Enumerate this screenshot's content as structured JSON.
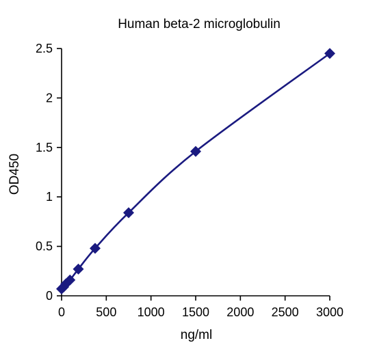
{
  "chart_data": {
    "type": "scatter",
    "title": "Human beta-2 microglobulin",
    "xlabel": "ng/ml",
    "ylabel": "OD450",
    "xlim": [
      0,
      3000
    ],
    "ylim": [
      0,
      2.5
    ],
    "x_ticks": [
      0,
      500,
      1000,
      1500,
      2000,
      2500,
      3000
    ],
    "y_ticks": [
      0,
      0.5,
      1,
      1.5,
      2,
      2.5
    ],
    "x_tick_labels": [
      "0",
      "500",
      "1000",
      "1500",
      "2000",
      "2500",
      "3000"
    ],
    "y_tick_labels": [
      "0",
      "0.5",
      "1",
      "1.5",
      "2",
      "2.5"
    ],
    "grid": false,
    "legend": "none",
    "color": "#1a1a80",
    "series": [
      {
        "marker": "diamond",
        "fit_line": true,
        "x": [
          0,
          23.4,
          46.9,
          93.75,
          187.5,
          375,
          750,
          1500,
          3000
        ],
        "y": [
          0.07,
          0.09,
          0.12,
          0.16,
          0.27,
          0.48,
          0.84,
          1.46,
          2.45
        ]
      }
    ]
  }
}
